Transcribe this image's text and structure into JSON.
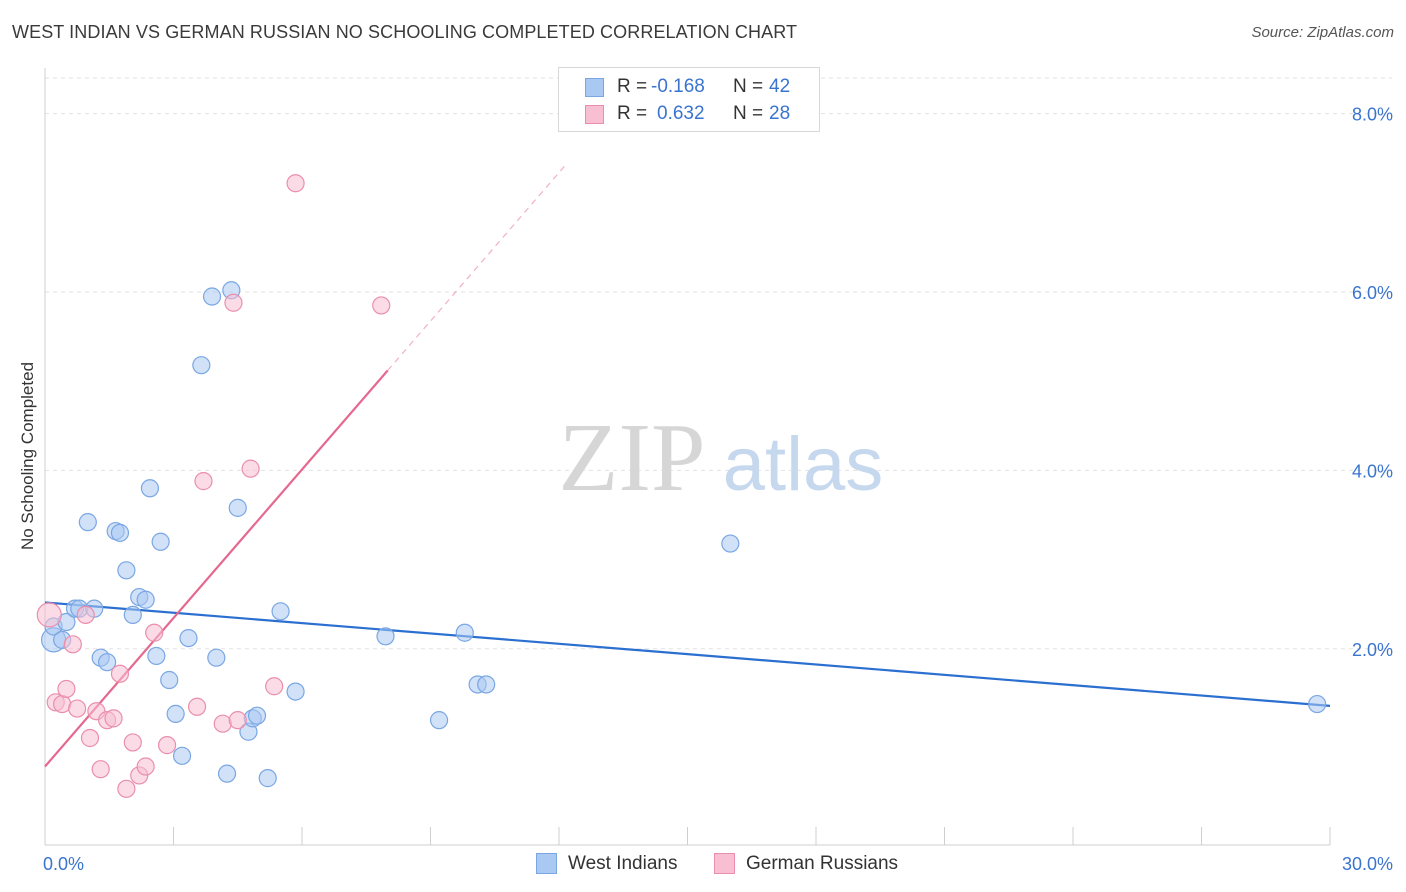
{
  "title": "WEST INDIAN VS GERMAN RUSSIAN NO SCHOOLING COMPLETED CORRELATION CHART",
  "source": "Source: ZipAtlas.com",
  "watermark": {
    "zip": "ZIP",
    "atlas": "atlas"
  },
  "stats": [
    {
      "r_label": "R =",
      "r_value": "-0.168",
      "n_label": "N =",
      "n_value": "42",
      "color": "#a9c8f2",
      "border": "#7aa7e3"
    },
    {
      "r_label": "R =",
      "r_value": "0.632",
      "n_label": "N =",
      "n_value": "28",
      "color": "#f7bfd1",
      "border": "#ea8eac"
    }
  ],
  "legend": [
    {
      "label": "West Indians",
      "color": "#a9c8f2",
      "border": "#7aa7e3"
    },
    {
      "label": "German Russians",
      "color": "#f7bfd1",
      "border": "#ea8eac"
    }
  ],
  "chart_data": {
    "type": "scatter",
    "title": "WEST INDIAN VS GERMAN RUSSIAN NO SCHOOLING COMPLETED CORRELATION CHART",
    "xlabel": "",
    "ylabel": "No Schooling Completed",
    "xlim": [
      0,
      30
    ],
    "ylim": [
      -0.2,
      8.4
    ],
    "x_tick_labels": [
      {
        "value": 0,
        "label": "0.0%"
      },
      {
        "value": 30,
        "label": "30.0%"
      }
    ],
    "y_ticks": [
      {
        "value": 2,
        "label": "2.0%"
      },
      {
        "value": 4,
        "label": "4.0%"
      },
      {
        "value": 6,
        "label": "6.0%"
      },
      {
        "value": 8,
        "label": "8.0%"
      }
    ],
    "series": [
      {
        "name": "West Indians",
        "color": "#a9c8f2",
        "stroke": "#7aa7e3",
        "line_color": "#2b6fd0",
        "trend": {
          "x": [
            0,
            30
          ],
          "y": [
            2.52,
            1.36
          ],
          "dashed_extension": null
        },
        "points": [
          {
            "x": 0.2,
            "y": 2.1,
            "big": true
          },
          {
            "x": 0.2,
            "y": 2.25
          },
          {
            "x": 0.4,
            "y": 2.1
          },
          {
            "x": 0.5,
            "y": 2.3
          },
          {
            "x": 0.7,
            "y": 2.45
          },
          {
            "x": 0.8,
            "y": 2.45
          },
          {
            "x": 1.0,
            "y": 3.42
          },
          {
            "x": 1.15,
            "y": 2.45
          },
          {
            "x": 1.3,
            "y": 1.9
          },
          {
            "x": 1.45,
            "y": 1.85
          },
          {
            "x": 1.65,
            "y": 3.32
          },
          {
            "x": 1.75,
            "y": 3.3
          },
          {
            "x": 1.9,
            "y": 2.88
          },
          {
            "x": 2.05,
            "y": 2.38
          },
          {
            "x": 2.2,
            "y": 2.58
          },
          {
            "x": 2.35,
            "y": 2.55
          },
          {
            "x": 2.45,
            "y": 3.8
          },
          {
            "x": 2.6,
            "y": 1.92
          },
          {
            "x": 2.7,
            "y": 3.2
          },
          {
            "x": 2.9,
            "y": 1.65
          },
          {
            "x": 3.05,
            "y": 1.27
          },
          {
            "x": 3.2,
            "y": 0.8
          },
          {
            "x": 3.35,
            "y": 2.12
          },
          {
            "x": 3.65,
            "y": 5.18
          },
          {
            "x": 3.9,
            "y": 5.95
          },
          {
            "x": 4.0,
            "y": 1.9
          },
          {
            "x": 4.25,
            "y": 0.6
          },
          {
            "x": 4.35,
            "y": 6.02
          },
          {
            "x": 4.5,
            "y": 3.58
          },
          {
            "x": 4.75,
            "y": 1.07
          },
          {
            "x": 4.85,
            "y": 1.22
          },
          {
            "x": 4.95,
            "y": 1.25
          },
          {
            "x": 5.2,
            "y": 0.55
          },
          {
            "x": 5.5,
            "y": 2.42
          },
          {
            "x": 5.85,
            "y": 1.52
          },
          {
            "x": 7.95,
            "y": 2.14
          },
          {
            "x": 9.2,
            "y": 1.2
          },
          {
            "x": 9.8,
            "y": 2.18
          },
          {
            "x": 10.1,
            "y": 1.6
          },
          {
            "x": 10.3,
            "y": 1.6
          },
          {
            "x": 16.0,
            "y": 3.18
          },
          {
            "x": 29.7,
            "y": 1.38
          }
        ]
      },
      {
        "name": "German Russians",
        "color": "#f7bfd1",
        "stroke": "#ea8eac",
        "line_color": "#e5688f",
        "trend": {
          "x": [
            0,
            8.0
          ],
          "y": [
            0.68,
            5.12
          ],
          "dashed_extension": {
            "x": [
              8.0,
              12.2
            ],
            "y": [
              5.12,
              7.45
            ]
          }
        },
        "points": [
          {
            "x": 0.1,
            "y": 2.38,
            "big": true
          },
          {
            "x": 0.25,
            "y": 1.4
          },
          {
            "x": 0.4,
            "y": 1.38
          },
          {
            "x": 0.5,
            "y": 1.55
          },
          {
            "x": 0.65,
            "y": 2.05
          },
          {
            "x": 0.75,
            "y": 1.33
          },
          {
            "x": 0.95,
            "y": 2.38
          },
          {
            "x": 1.05,
            "y": 1.0
          },
          {
            "x": 1.2,
            "y": 1.3
          },
          {
            "x": 1.3,
            "y": 0.65
          },
          {
            "x": 1.45,
            "y": 1.2
          },
          {
            "x": 1.6,
            "y": 1.22
          },
          {
            "x": 1.75,
            "y": 1.72
          },
          {
            "x": 1.9,
            "y": 0.43
          },
          {
            "x": 2.05,
            "y": 0.95
          },
          {
            "x": 2.2,
            "y": 0.58
          },
          {
            "x": 2.35,
            "y": 0.68
          },
          {
            "x": 2.55,
            "y": 2.18
          },
          {
            "x": 2.85,
            "y": 0.92
          },
          {
            "x": 3.55,
            "y": 1.35
          },
          {
            "x": 3.7,
            "y": 3.88
          },
          {
            "x": 4.15,
            "y": 1.16
          },
          {
            "x": 4.4,
            "y": 5.88
          },
          {
            "x": 4.5,
            "y": 1.2
          },
          {
            "x": 4.8,
            "y": 4.02
          },
          {
            "x": 5.35,
            "y": 1.58
          },
          {
            "x": 5.85,
            "y": 7.22
          },
          {
            "x": 7.85,
            "y": 5.85
          }
        ]
      }
    ]
  }
}
